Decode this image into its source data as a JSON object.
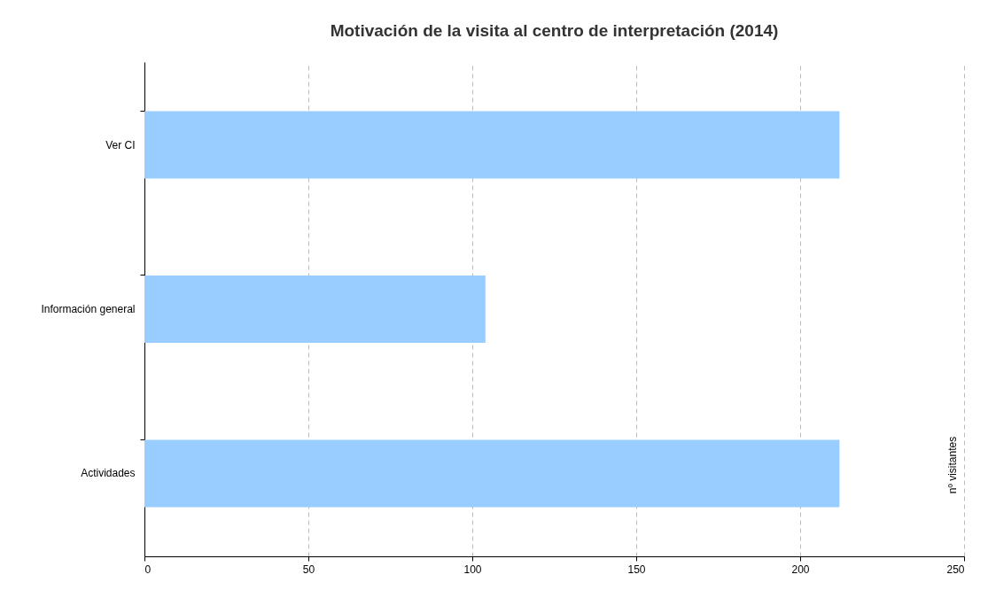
{
  "chart_data": {
    "type": "bar",
    "title": "Motivación de la visita al centro de interpretación (2014)",
    "orientation": "horizontal",
    "categories": [
      "Ver CI",
      "Información general",
      "Actividades"
    ],
    "values": [
      212,
      104,
      212
    ],
    "color": "#99ccff",
    "annotations": [
      "nº visitantes"
    ],
    "xlim": [
      0,
      250
    ],
    "xticks": [
      0,
      50,
      100,
      150,
      200,
      250
    ],
    "grid": "x"
  }
}
